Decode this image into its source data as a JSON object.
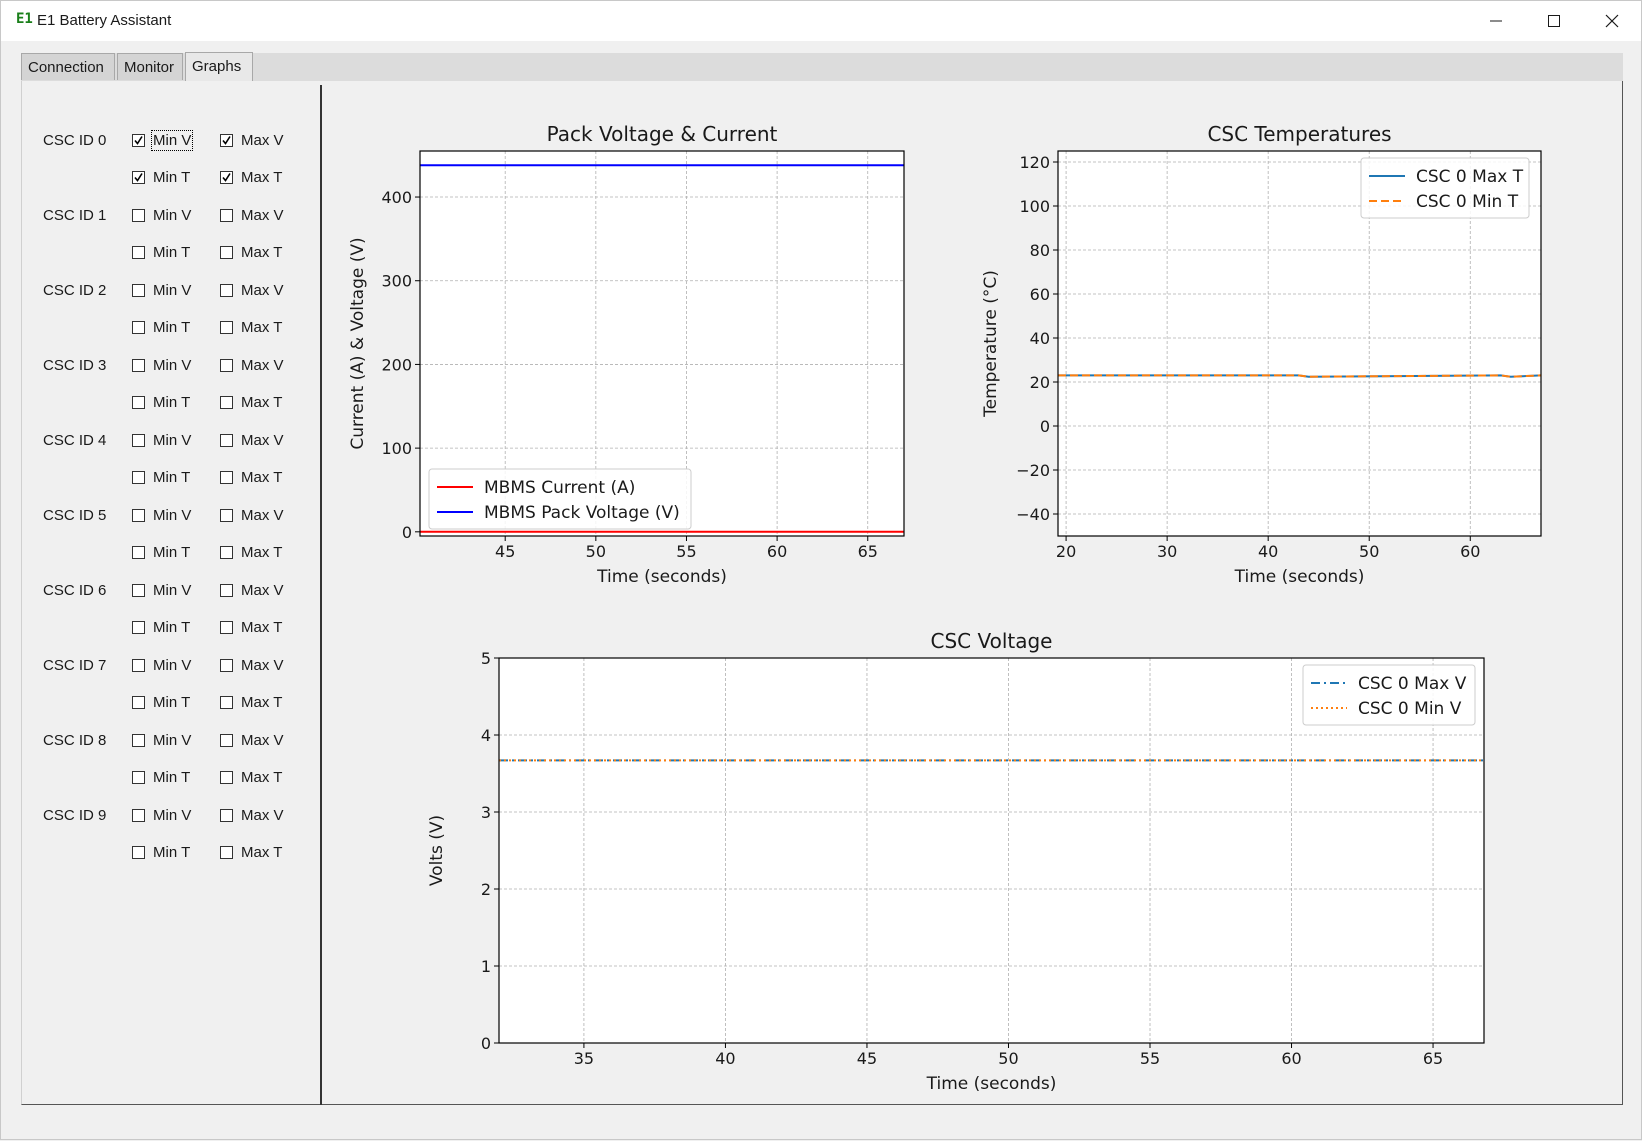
{
  "window": {
    "title": "E1 Battery Assistant",
    "icon_text": "E1",
    "controls": [
      "minimize-icon",
      "maximize-icon",
      "close-icon"
    ]
  },
  "tabs": [
    {
      "label": "Connection",
      "active": false
    },
    {
      "label": "Monitor",
      "active": false
    },
    {
      "label": "Graphs",
      "active": true
    }
  ],
  "sidebar": {
    "rows": [
      {
        "label": "CSC ID 0",
        "min_v": true,
        "max_v": true,
        "min_t": true,
        "max_t": true
      },
      {
        "label": "CSC ID 1",
        "min_v": false,
        "max_v": false,
        "min_t": false,
        "max_t": false
      },
      {
        "label": "CSC ID 2",
        "min_v": false,
        "max_v": false,
        "min_t": false,
        "max_t": false
      },
      {
        "label": "CSC ID 3",
        "min_v": false,
        "max_v": false,
        "min_t": false,
        "max_t": false
      },
      {
        "label": "CSC ID 4",
        "min_v": false,
        "max_v": false,
        "min_t": false,
        "max_t": false
      },
      {
        "label": "CSC ID 5",
        "min_v": false,
        "max_v": false,
        "min_t": false,
        "max_t": false
      },
      {
        "label": "CSC ID 6",
        "min_v": false,
        "max_v": false,
        "min_t": false,
        "max_t": false
      },
      {
        "label": "CSC ID 7",
        "min_v": false,
        "max_v": false,
        "min_t": false,
        "max_t": false
      },
      {
        "label": "CSC ID 8",
        "min_v": false,
        "max_v": false,
        "min_t": false,
        "max_t": false
      },
      {
        "label": "CSC ID 9",
        "min_v": false,
        "max_v": false,
        "min_t": false,
        "max_t": false
      }
    ],
    "labels": {
      "min_v": "Min V",
      "max_v": "Max V",
      "min_t": "Min T",
      "max_t": "Max T"
    }
  },
  "chart_data": [
    {
      "id": "pack",
      "type": "line",
      "title": "Pack Voltage & Current",
      "xlabel": "Time (seconds)",
      "ylabel": "Current (A) & Voltage (V)",
      "xlim": [
        40.3,
        67
      ],
      "ylim": [
        -5,
        455
      ],
      "xticks": [
        45,
        50,
        55,
        60,
        65
      ],
      "yticks": [
        0,
        100,
        200,
        300,
        400
      ],
      "grid": true,
      "legend": "lower-left",
      "series": [
        {
          "name": "MBMS Current (A)",
          "color": "#ff0000",
          "style": "solid",
          "x": [
            40.3,
            67
          ],
          "y": [
            0,
            0
          ]
        },
        {
          "name": "MBMS Pack Voltage (V)",
          "color": "#0000ff",
          "style": "solid",
          "x": [
            40.3,
            45,
            50,
            55,
            60,
            67
          ],
          "y": [
            438,
            438,
            438,
            438,
            438,
            438
          ]
        }
      ]
    },
    {
      "id": "temps",
      "type": "line",
      "title": "CSC Temperatures",
      "xlabel": "Time (seconds)",
      "ylabel": "Temperature (°C)",
      "xlim": [
        19.2,
        67
      ],
      "ylim": [
        -50,
        125
      ],
      "xticks": [
        20,
        30,
        40,
        50,
        60
      ],
      "yticks": [
        -40,
        -20,
        0,
        20,
        40,
        60,
        80,
        100,
        120
      ],
      "ytick_labels": [
        "−40",
        "−20",
        "0",
        "20",
        "40",
        "60",
        "80",
        "100",
        "120"
      ],
      "grid": true,
      "legend": "upper-right",
      "series": [
        {
          "name": "CSC 0 Max T",
          "color": "#1f77b4",
          "style": "solid",
          "x": [
            19.2,
            30,
            43,
            44,
            63,
            64,
            67
          ],
          "y": [
            23,
            23,
            23,
            22.4,
            23,
            22.4,
            23
          ]
        },
        {
          "name": "CSC 0 Min T",
          "color": "#ff7f0e",
          "style": "dashed",
          "x": [
            19.2,
            30,
            43,
            44,
            63,
            64,
            67
          ],
          "y": [
            23,
            23,
            23,
            22.4,
            23,
            22.4,
            23
          ]
        }
      ]
    },
    {
      "id": "volts",
      "type": "line",
      "title": "CSC Voltage",
      "xlabel": "Time (seconds)",
      "ylabel": "Volts (V)",
      "xlim": [
        32,
        66.8
      ],
      "ylim": [
        0,
        5
      ],
      "xticks": [
        35,
        40,
        45,
        50,
        55,
        60,
        65
      ],
      "yticks": [
        0,
        1,
        2,
        3,
        4,
        5
      ],
      "grid": true,
      "legend": "upper-right",
      "series": [
        {
          "name": "CSC 0 Max V",
          "color": "#1f77b4",
          "style": "dashdot",
          "x": [
            32,
            66.8
          ],
          "y": [
            3.67,
            3.67
          ]
        },
        {
          "name": "CSC 0 Min V",
          "color": "#ff7f0e",
          "style": "dotted",
          "x": [
            32,
            66.8
          ],
          "y": [
            3.67,
            3.67
          ]
        }
      ]
    }
  ]
}
